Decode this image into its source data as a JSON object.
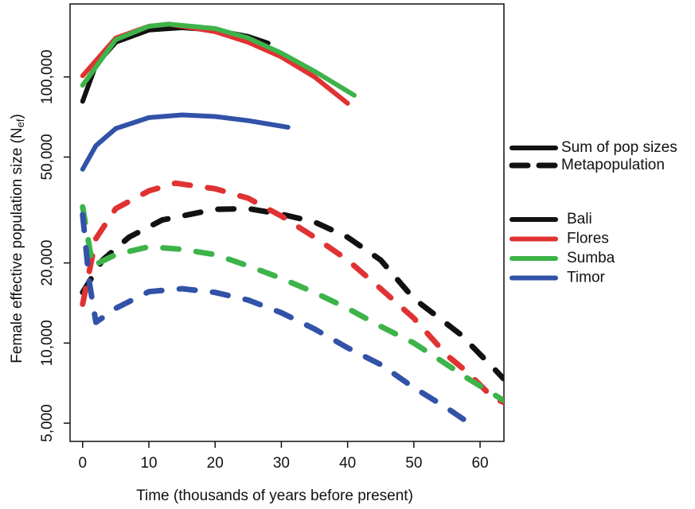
{
  "chart_data": {
    "type": "line",
    "log_y": true,
    "x_label": "Time (thousands of years before present)",
    "y_label": "Female effective population size (N",
    "y_label_sub": "ef",
    "y_label_end": ")",
    "xlim": [
      -1.9,
      63.6
    ],
    "xticks": [
      0,
      10,
      20,
      30,
      40,
      50,
      60
    ],
    "ylim": [
      4270,
      188000
    ],
    "yticks": [
      {
        "value": 5000,
        "label": "5,000"
      },
      {
        "value": 10000,
        "label": "10,000"
      },
      {
        "value": 20000,
        "label": "20,000"
      },
      {
        "value": 50000,
        "label": "50,000"
      },
      {
        "value": 100000,
        "label": "100,000"
      }
    ],
    "line_styles": [
      {
        "label": "Sum of pop sizes",
        "dashed": false
      },
      {
        "label": "Metapopulation",
        "dashed": true
      }
    ],
    "series": [
      {
        "name": "Bali",
        "color": "#111111",
        "dashed": false,
        "x": [
          0,
          2,
          5,
          10,
          15,
          20,
          25,
          28
        ],
        "values": [
          81000,
          111000,
          135000,
          150000,
          153000,
          150000,
          142000,
          134000
        ]
      },
      {
        "name": "Flores",
        "color": "#e03232",
        "dashed": false,
        "x": [
          0,
          5,
          10,
          13,
          20,
          25,
          30,
          35,
          40
        ],
        "values": [
          101000,
          140000,
          155000,
          158000,
          148000,
          135000,
          119000,
          100000,
          79600
        ]
      },
      {
        "name": "Sumba",
        "color": "#3db34a",
        "dashed": false,
        "x": [
          0,
          5,
          10,
          13,
          20,
          25,
          30,
          35,
          41
        ],
        "values": [
          93000,
          138000,
          155000,
          158000,
          152000,
          140000,
          123000,
          105000,
          85300
        ]
      },
      {
        "name": "Timor",
        "color": "#3252a8",
        "dashed": false,
        "x": [
          0,
          2,
          5,
          10,
          15,
          20,
          25,
          31
        ],
        "values": [
          45000,
          55200,
          64000,
          70300,
          72000,
          71000,
          68500,
          64700
        ]
      },
      {
        "name": "Bali",
        "color": "#111111",
        "dashed": true,
        "x": [
          0,
          3,
          7,
          12,
          20,
          25,
          30,
          35,
          40,
          45,
          50,
          57,
          62,
          63.5
        ],
        "values": [
          15500,
          20500,
          25000,
          29000,
          31800,
          32000,
          30500,
          28500,
          25000,
          20500,
          14700,
          10800,
          8070,
          7360
        ]
      },
      {
        "name": "Flores",
        "color": "#e03232",
        "dashed": true,
        "x": [
          0,
          2,
          5,
          10,
          14,
          20,
          25,
          30,
          35,
          40,
          45,
          50,
          55,
          58,
          62,
          63.5
        ],
        "values": [
          14000,
          24700,
          32000,
          37300,
          39900,
          38000,
          35000,
          30000,
          25000,
          20500,
          16000,
          12400,
          9000,
          7800,
          6210,
          6000
        ]
      },
      {
        "name": "Sumba",
        "color": "#3db34a",
        "dashed": true,
        "x": [
          0,
          1.5,
          5,
          10,
          15,
          20,
          25,
          30,
          35,
          40,
          45,
          50,
          55,
          58,
          63.5
        ],
        "values": [
          32500,
          19500,
          21500,
          23000,
          22500,
          21500,
          19500,
          17500,
          15500,
          13500,
          11550,
          10000,
          8300,
          7400,
          6100
        ]
      },
      {
        "name": "Timor",
        "color": "#3252a8",
        "dashed": true,
        "x": [
          0,
          1,
          2,
          5,
          10,
          15,
          20,
          25,
          30,
          35,
          40,
          45,
          50,
          55,
          58
        ],
        "values": [
          30400,
          17000,
          11960,
          13500,
          15600,
          16000,
          15500,
          14500,
          13000,
          11300,
          9600,
          8300,
          6800,
          5700,
          5070
        ]
      }
    ]
  }
}
